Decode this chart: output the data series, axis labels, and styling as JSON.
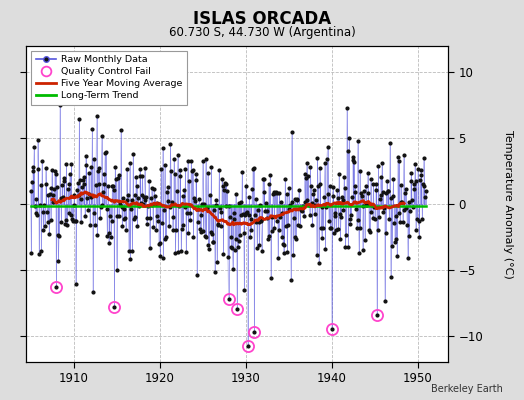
{
  "title": "ISLAS ORCADA",
  "subtitle": "60.730 S, 44.730 W (Argentina)",
  "ylabel": "Temperature Anomaly (°C)",
  "credit": "Berkeley Earth",
  "xlim": [
    1904.5,
    1953.5
  ],
  "ylim": [
    -12,
    12
  ],
  "yticks": [
    -10,
    -5,
    0,
    5,
    10
  ],
  "xticks": [
    1910,
    1920,
    1930,
    1940,
    1950
  ],
  "bg_color": "#dddddd",
  "plot_bg": "#ffffff",
  "raw_line_color": "#5555dd",
  "raw_marker_color": "#111111",
  "ma_color": "#cc2200",
  "trend_color": "#00bb00",
  "qc_color": "#ff44cc",
  "seed": 17,
  "start_year": 1905.0,
  "n_months": 552,
  "qc_fail_times": [
    1908.0,
    1914.75,
    1928.0,
    1929.0,
    1930.25,
    1931.0,
    1940.0,
    1945.25
  ],
  "qc_fail_values": [
    -6.3,
    -7.8,
    -7.2,
    -8.0,
    -10.8,
    -9.7,
    -9.5,
    -8.4
  ]
}
